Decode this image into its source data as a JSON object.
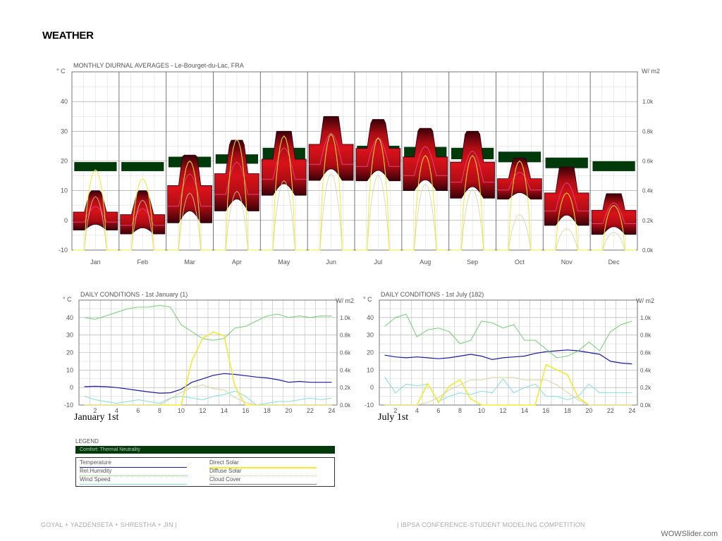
{
  "page": {
    "title": "WEATHER",
    "footer_left": "GOYAL + YAZDENSETA + SHRESTHA + JIN |",
    "footer_right": "| IBPSA CONFERENCE-STUDENT MODELING COMPETITION",
    "watermark": "WOWSlider.com",
    "label_jan": "January 1st",
    "label_jul": "July 1st"
  },
  "colors": {
    "temperature": "#1a1a9a",
    "humidity": "#66cc66",
    "wind": "#88dddd",
    "direct_solar": "#f2ea33",
    "diffuse_solar": "#d8d3a0",
    "cloud": "#7d7d7d",
    "comfort": "#003a0a",
    "grid": "#999999"
  },
  "legend": {
    "title": "LEGEND",
    "comfort": "Comfort: Thermal Neutrality",
    "items": [
      {
        "label": "Temperature",
        "color": "#1a1a9a",
        "style": "solid"
      },
      {
        "label": "Direct Solar",
        "color": "#f2ea33",
        "style": "solid"
      },
      {
        "label": "Rel.Humidity",
        "color": "#66cc66",
        "style": "dotted"
      },
      {
        "label": "Diffuse Solar",
        "color": "#d8d3a0",
        "style": "dotted"
      },
      {
        "label": "Wind Speed",
        "color": "#88dddd",
        "style": "solid"
      },
      {
        "label": "Cloud Cover",
        "color": "#7d7d7d",
        "style": "solid"
      }
    ]
  },
  "chart_data": [
    {
      "type": "area",
      "title": "MONTHLY DIURNAL AVERAGES - Le-Bourget-du-Lac, FRA",
      "ylabel_left": "° C",
      "ylabel_right": "W/ m2",
      "ylim": [
        -10,
        50
      ],
      "ylim_right": [
        0,
        1400
      ],
      "yticks_left": [
        "40",
        "30",
        "20",
        "10",
        "0",
        "-10"
      ],
      "yticks_right": [
        "1.0k",
        "0.8k",
        "0.6k",
        "0.4k",
        "0.2k",
        "0.0k"
      ],
      "categories": [
        "Jan",
        "Feb",
        "Mar",
        "Apr",
        "May",
        "Jun",
        "Jul",
        "Aug",
        "Sep",
        "Oct",
        "Nov",
        "Dec"
      ],
      "temp_min": [
        -5,
        -6,
        -9,
        -4,
        0,
        5,
        7,
        3,
        0,
        4,
        -9,
        -11
      ],
      "temp_max": [
        10,
        10,
        22,
        27,
        30,
        35,
        34,
        31,
        30,
        21,
        18,
        9
      ],
      "temp_mean": [
        1,
        0,
        8,
        12,
        17,
        22,
        21,
        18,
        16,
        12,
        6,
        1
      ],
      "comfort_band": [
        [
          16.5,
          19.7
        ],
        [
          16.5,
          19.7
        ],
        [
          17.8,
          21.5
        ],
        [
          19,
          22.3
        ],
        [
          20.5,
          24.5
        ],
        [
          21.5,
          25.5
        ],
        [
          21.5,
          25.2
        ],
        [
          21,
          24.8
        ],
        [
          20.5,
          24.5
        ],
        [
          19.5,
          23.2
        ],
        [
          17.5,
          21.2
        ],
        [
          16.5,
          20
        ]
      ],
      "direct_solar_peak": [
        0.45,
        0.4,
        0.5,
        0.62,
        0.64,
        0.65,
        0.63,
        0.53,
        0.53,
        0.5,
        0.32,
        0.25
      ],
      "diffuse_solar_peak": [
        0.3,
        0.28,
        0.32,
        0.33,
        0.39,
        0.43,
        0.42,
        0.37,
        0.34,
        0.2,
        0.12,
        0.1
      ],
      "grid": true
    },
    {
      "type": "line",
      "title": "DAILY CONDITIONS - 1st January (1)",
      "ylabel_left": "° C",
      "ylabel_right": "W/ m2",
      "ylim": [
        -10,
        50
      ],
      "yticks_left": [
        "40",
        "30",
        "20",
        "10",
        "0",
        "-10"
      ],
      "yticks_right": [
        "1.0k",
        "0.8k",
        "0.6k",
        "0.4k",
        "0.2k",
        "0.0k"
      ],
      "xticks": [
        "2",
        "4",
        "6",
        "8",
        "10",
        "12",
        "14",
        "16",
        "18",
        "20",
        "22",
        "24"
      ],
      "x": [
        1,
        2,
        3,
        4,
        5,
        6,
        7,
        8,
        9,
        10,
        11,
        12,
        13,
        14,
        15,
        16,
        17,
        18,
        19,
        20,
        21,
        22,
        23,
        24
      ],
      "series": [
        {
          "name": "Temperature",
          "values": [
            0.5,
            0.7,
            0.5,
            0,
            -0.8,
            -1.7,
            -2.5,
            -3.2,
            -3,
            -1,
            3,
            5,
            7,
            8,
            7.5,
            6.8,
            6,
            5.5,
            4.5,
            3,
            3.5,
            3,
            3,
            3
          ]
        },
        {
          "name": "Rel.Humidity",
          "values": [
            40,
            39,
            41,
            43,
            45,
            46,
            46,
            47,
            46,
            36,
            32,
            28,
            27,
            28,
            34,
            35,
            38,
            41,
            42,
            40,
            41,
            40,
            41,
            41
          ]
        },
        {
          "name": "Wind Speed",
          "values": [
            -5,
            -7,
            -8,
            -9,
            -8,
            -7,
            -8,
            -9,
            -6,
            -5,
            -6,
            -7,
            -5,
            -4,
            -2,
            -5,
            -10,
            -9,
            -8,
            -8,
            -7,
            -6,
            -7,
            -6
          ]
        },
        {
          "name": "Direct Solar",
          "values": [
            0,
            0,
            0,
            0,
            0,
            0,
            0,
            0,
            0,
            0,
            0.35,
            0.53,
            0.58,
            0.55,
            0.15,
            0,
            0,
            0,
            0,
            0,
            0,
            0,
            0,
            0
          ]
        },
        {
          "name": "Diffuse Solar",
          "values": [
            0,
            0,
            0,
            0,
            0,
            0,
            0,
            0,
            0.05,
            0.1,
            0.14,
            0.16,
            0.13,
            0.12,
            0.06,
            0.02,
            0,
            0,
            0,
            0,
            0,
            0,
            0,
            0
          ]
        }
      ],
      "grid": true
    },
    {
      "type": "line",
      "title": "DAILY CONDITIONS - 1st July (182)",
      "ylabel_left": "° C",
      "ylabel_right": "W/ m2",
      "ylim": [
        -10,
        50
      ],
      "yticks_left": [
        "40",
        "30",
        "20",
        "10",
        "0",
        "-10"
      ],
      "yticks_right": [
        "1.0k",
        "0.8k",
        "0.6k",
        "0.4k",
        "0.2k",
        "0.0k"
      ],
      "xticks": [
        "2",
        "4",
        "6",
        "8",
        "10",
        "12",
        "14",
        "16",
        "18",
        "20",
        "22",
        "24"
      ],
      "x": [
        1,
        2,
        3,
        4,
        5,
        6,
        7,
        8,
        9,
        10,
        11,
        12,
        13,
        14,
        15,
        16,
        17,
        18,
        19,
        20,
        21,
        22,
        23,
        24
      ],
      "series": [
        {
          "name": "Temperature",
          "values": [
            18.5,
            17.5,
            17,
            17.5,
            17,
            16.5,
            17,
            18,
            19,
            18,
            16,
            17,
            17.5,
            18,
            19.5,
            20.5,
            21,
            21.5,
            21,
            20,
            19,
            15,
            14,
            13.5
          ]
        },
        {
          "name": "Rel.Humidity",
          "values": [
            35,
            40,
            42,
            29,
            33,
            34,
            32,
            25,
            27,
            38,
            37,
            34,
            36,
            27,
            27,
            22,
            17,
            18,
            21,
            26,
            21,
            32,
            36,
            38
          ]
        },
        {
          "name": "Wind Speed",
          "values": [
            6,
            -3,
            2,
            1,
            2,
            -8,
            -5,
            -3,
            -4,
            -2,
            -3,
            5,
            -3,
            0,
            2,
            -5,
            -5,
            -7,
            -5,
            2,
            -3,
            -3,
            -3,
            -3
          ]
        },
        {
          "name": "Direct Solar",
          "values": [
            0,
            0,
            0,
            0,
            0.17,
            0.02,
            0.15,
            0.2,
            0.05,
            0,
            0,
            0,
            0,
            0,
            0,
            0.32,
            0.28,
            0.24,
            0.06,
            0,
            0,
            0,
            0,
            0
          ]
        },
        {
          "name": "Diffuse Solar",
          "values": [
            0,
            0,
            0,
            0,
            0.02,
            0.06,
            0.12,
            0.16,
            0.2,
            0.2,
            0.22,
            0.22,
            0.22,
            0.2,
            0.2,
            0.2,
            0.16,
            0.1,
            0.04,
            0,
            0,
            0,
            0,
            0
          ]
        }
      ],
      "grid": true
    }
  ]
}
